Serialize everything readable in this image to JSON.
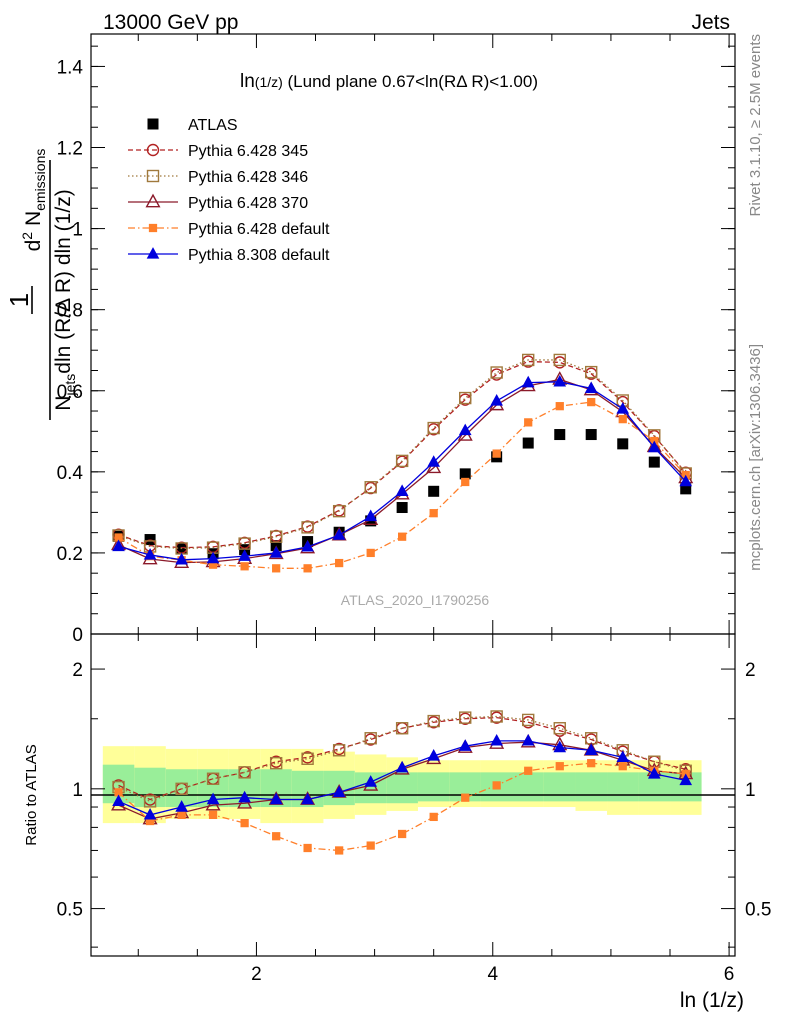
{
  "header": {
    "left": "13000 GeV pp",
    "right": "Jets"
  },
  "side_labels": {
    "rivet": "Rivet 3.1.10, ≥ 2.5M events",
    "mcplots": "mcplots.cern.ch [arXiv:1306.3436]"
  },
  "watermark": "ATLAS_2020_I1790256",
  "colors": {
    "atlas": "#000000",
    "p345": "#b22222",
    "p346": "#a0793c",
    "p370": "#8b1a2a",
    "p6def": "#ff7f2a",
    "p8def": "#0000dd",
    "band_yellow": "#ffff99",
    "band_green": "#99ee99"
  },
  "chart_data": [
    {
      "type": "scatter",
      "title": "ln(1/z) (Lund plane 0.67<ln(RΔ R)<1.00)",
      "title_prefix": "ln",
      "title_sub": "(1/z)",
      "title_rest": " (Lund plane 0.67<ln(RΔ R)<1.00)",
      "ylabel_numerator": "1",
      "ylabel_denom_prefix": "N",
      "ylabel_denom_sub": "jets",
      "ylabel_denom_rest": "dln (R/Δ R) dln (1/z)",
      "ylabel_num2_sup": "2",
      "ylabel_num2_main": "d",
      "ylabel_num2_N": "N",
      "ylabel_num2_sub": "emissions",
      "ylim": [
        0,
        1.48
      ],
      "xlim": [
        0.6,
        6.05
      ],
      "yticks": [
        0,
        0.2,
        0.4,
        0.6,
        0.8,
        1,
        1.2,
        1.4
      ],
      "ytick_labels": [
        "0",
        "0.2",
        "0.4",
        "0.6",
        "0.8",
        "1",
        "1.2",
        "1.4"
      ],
      "legend_position": "top-left",
      "x": [
        0.833,
        1.1,
        1.367,
        1.633,
        1.9,
        2.167,
        2.433,
        2.7,
        2.967,
        3.233,
        3.5,
        3.767,
        4.033,
        4.3,
        4.567,
        4.833,
        5.1,
        5.367,
        5.633
      ],
      "series": [
        {
          "name": "ATLAS",
          "key": "atlas",
          "marker": "square-filled",
          "line": "none",
          "values": [
            0.241,
            0.233,
            0.212,
            0.198,
            0.208,
            0.218,
            0.228,
            0.251,
            0.279,
            0.312,
            0.352,
            0.395,
            0.437,
            0.471,
            0.492,
            0.492,
            0.469,
            0.424,
            0.358
          ]
        },
        {
          "name": "Pythia 6.428 345",
          "key": "p345",
          "marker": "circle-open",
          "line": "dashed",
          "values": [
            0.245,
            0.218,
            0.213,
            0.215,
            0.225,
            0.242,
            0.265,
            0.305,
            0.36,
            0.425,
            0.505,
            0.578,
            0.64,
            0.672,
            0.67,
            0.642,
            0.572,
            0.488,
            0.398
          ]
        },
        {
          "name": "Pythia 6.428 346",
          "key": "p346",
          "marker": "square-open",
          "line": "dotted",
          "values": [
            0.243,
            0.216,
            0.211,
            0.213,
            0.223,
            0.24,
            0.263,
            0.303,
            0.362,
            0.427,
            0.508,
            0.582,
            0.645,
            0.676,
            0.676,
            0.646,
            0.576,
            0.49,
            0.396
          ]
        },
        {
          "name": "Pythia 6.428 370",
          "key": "p370",
          "marker": "triangle-open",
          "line": "solid",
          "values": [
            0.22,
            0.185,
            0.176,
            0.178,
            0.186,
            0.198,
            0.212,
            0.244,
            0.282,
            0.345,
            0.41,
            0.49,
            0.565,
            0.612,
            0.628,
            0.602,
            0.548,
            0.462,
            0.385
          ]
        },
        {
          "name": "Pythia 6.428 default",
          "key": "p6def",
          "marker": "square-filled-small",
          "line": "dashdot",
          "values": [
            0.238,
            0.192,
            0.182,
            0.171,
            0.167,
            0.162,
            0.162,
            0.175,
            0.2,
            0.24,
            0.298,
            0.375,
            0.445,
            0.522,
            0.562,
            0.572,
            0.53,
            0.476,
            0.392
          ]
        },
        {
          "name": "Pythia 8.308 default",
          "key": "p8def",
          "marker": "triangle-filled",
          "line": "solid",
          "values": [
            0.216,
            0.195,
            0.183,
            0.186,
            0.192,
            0.2,
            0.215,
            0.244,
            0.29,
            0.352,
            0.424,
            0.502,
            0.575,
            0.62,
            0.622,
            0.606,
            0.555,
            0.46,
            0.376
          ]
        }
      ]
    },
    {
      "type": "scatter",
      "ylabel": "Ratio to ATLAS",
      "xlabel": "ln (1/z)",
      "ylim": [
        0.38,
        2.45
      ],
      "y_scale": "log",
      "xlim": [
        0.6,
        6.05
      ],
      "xticks": [
        2,
        4,
        6
      ],
      "xtick_labels": [
        "2",
        "4",
        "6"
      ],
      "yticks": [
        0.5,
        1,
        2
      ],
      "ytick_labels": [
        "0.5",
        "1",
        "2"
      ],
      "x": [
        0.833,
        1.1,
        1.367,
        1.633,
        1.9,
        2.167,
        2.433,
        2.7,
        2.967,
        3.233,
        3.5,
        3.767,
        4.033,
        4.3,
        4.567,
        4.833,
        5.1,
        5.367,
        5.633
      ],
      "bins_edges": [
        0.7,
        0.967,
        1.233,
        1.5,
        1.767,
        2.033,
        2.3,
        2.567,
        2.833,
        3.1,
        3.367,
        3.633,
        3.9,
        4.167,
        4.433,
        4.7,
        4.967,
        5.233,
        5.5,
        5.767
      ],
      "band_outer": {
        "lo": [
          0.82,
          0.82,
          0.84,
          0.84,
          0.84,
          0.82,
          0.82,
          0.84,
          0.86,
          0.88,
          0.9,
          0.9,
          0.9,
          0.9,
          0.9,
          0.88,
          0.86,
          0.86,
          0.86
        ],
        "hi": [
          1.28,
          1.28,
          1.26,
          1.26,
          1.26,
          1.26,
          1.26,
          1.24,
          1.22,
          1.2,
          1.18,
          1.18,
          1.18,
          1.18,
          1.18,
          1.18,
          1.18,
          1.18,
          1.18
        ]
      },
      "band_inner": {
        "lo": [
          0.92,
          0.9,
          0.9,
          0.9,
          0.9,
          0.9,
          0.9,
          0.91,
          0.92,
          0.92,
          0.93,
          0.93,
          0.93,
          0.93,
          0.93,
          0.93,
          0.93,
          0.93,
          0.93
        ],
        "hi": [
          1.15,
          1.13,
          1.12,
          1.12,
          1.12,
          1.12,
          1.11,
          1.11,
          1.1,
          1.1,
          1.1,
          1.1,
          1.1,
          1.1,
          1.1,
          1.1,
          1.1,
          1.1,
          1.1
        ]
      },
      "series": [
        {
          "name": "Pythia 6.428 345",
          "key": "p345",
          "values": [
            1.02,
            0.94,
            1.0,
            1.06,
            1.1,
            1.17,
            1.2,
            1.26,
            1.33,
            1.42,
            1.47,
            1.5,
            1.51,
            1.47,
            1.4,
            1.33,
            1.24,
            1.17,
            1.12
          ]
        },
        {
          "name": "Pythia 6.428 346",
          "key": "p346",
          "values": [
            1.01,
            0.93,
            1.0,
            1.06,
            1.1,
            1.16,
            1.19,
            1.25,
            1.34,
            1.42,
            1.48,
            1.51,
            1.52,
            1.49,
            1.42,
            1.34,
            1.25,
            1.17,
            1.11
          ]
        },
        {
          "name": "Pythia 6.428 370",
          "key": "p370",
          "values": [
            0.91,
            0.84,
            0.87,
            0.91,
            0.92,
            0.94,
            0.94,
            0.98,
            1.02,
            1.12,
            1.19,
            1.27,
            1.3,
            1.31,
            1.29,
            1.25,
            1.18,
            1.11,
            1.09
          ]
        },
        {
          "name": "Pythia 6.428 default",
          "key": "p6def",
          "values": [
            0.98,
            0.83,
            0.86,
            0.86,
            0.82,
            0.76,
            0.71,
            0.7,
            0.72,
            0.77,
            0.85,
            0.95,
            1.02,
            1.11,
            1.14,
            1.16,
            1.14,
            1.11,
            1.09
          ]
        },
        {
          "name": "Pythia 8.308 default",
          "key": "p8def",
          "values": [
            0.93,
            0.86,
            0.9,
            0.94,
            0.95,
            0.94,
            0.94,
            0.98,
            1.04,
            1.13,
            1.21,
            1.28,
            1.32,
            1.32,
            1.27,
            1.25,
            1.2,
            1.09,
            1.05
          ]
        }
      ]
    }
  ]
}
